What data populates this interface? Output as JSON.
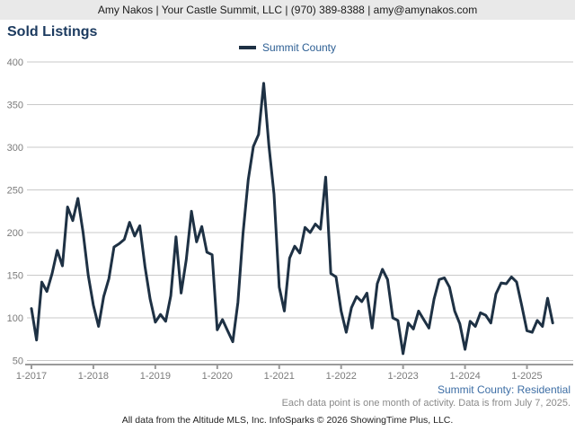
{
  "header": {
    "contact": "Amy Nakos | Your Castle Summit, LLC | (970) 389-8388 | amy@amynakos.com"
  },
  "title": "Sold Listings",
  "legend": {
    "label": "Summit County"
  },
  "footnotes": {
    "series_note": "Summit County: Residential",
    "data_note": "Each data point is one month of activity. Data is from July 7, 2025.",
    "attribution": "All data from the Altitude MLS, Inc. InfoSparks © 2026 ShowingTime Plus, LLC."
  },
  "chart_data": {
    "type": "line",
    "title": "Sold Listings",
    "x_frequency": "monthly",
    "x_start": "2017-01",
    "x_end": "2025-06",
    "x_tick_labels": [
      "1-2017",
      "1-2018",
      "1-2019",
      "1-2020",
      "1-2021",
      "1-2022",
      "1-2023",
      "1-2024",
      "1-2025"
    ],
    "ylim": [
      50,
      400
    ],
    "y_ticks": [
      50,
      100,
      150,
      200,
      250,
      300,
      350,
      400
    ],
    "grid": true,
    "legend_position": "top-center",
    "line_color": "#1e3144",
    "grid_color": "#c9c9c9",
    "axis_color": "#9a9a9a",
    "series": [
      {
        "name": "Summit County",
        "values": [
          111,
          74,
          142,
          131,
          152,
          179,
          161,
          230,
          214,
          240,
          200,
          150,
          115,
          90,
          125,
          146,
          183,
          187,
          192,
          212,
          196,
          208,
          160,
          122,
          95,
          104,
          96,
          126,
          195,
          129,
          168,
          225,
          189,
          207,
          177,
          174,
          86,
          98,
          85,
          72,
          118,
          199,
          262,
          301,
          315,
          375,
          302,
          245,
          136,
          108,
          170,
          184,
          176,
          206,
          200,
          210,
          204,
          265,
          152,
          148,
          108,
          83,
          112,
          125,
          119,
          129,
          88,
          140,
          157,
          145,
          100,
          97,
          58,
          94,
          87,
          108,
          98,
          88,
          122,
          145,
          147,
          136,
          108,
          93,
          63,
          96,
          90,
          106,
          103,
          94,
          128,
          141,
          140,
          148,
          142,
          114,
          85,
          83,
          97,
          90,
          123,
          94
        ]
      }
    ]
  }
}
